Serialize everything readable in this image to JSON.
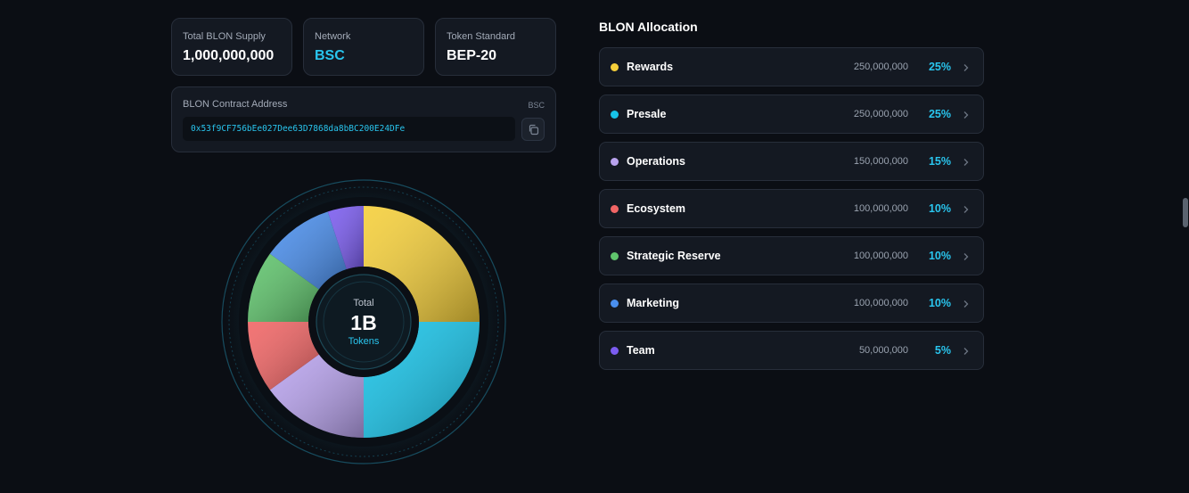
{
  "stats": [
    {
      "label": "Total BLON Supply",
      "value": "1,000,000,000",
      "accent": false
    },
    {
      "label": "Network",
      "value": "BSC",
      "accent": true
    },
    {
      "label": "Token Standard",
      "value": "BEP-20",
      "accent": false
    }
  ],
  "contract": {
    "label": "BLON Contract Address",
    "network": "BSC",
    "address": "0x53f9CF756bEe027Dee63D7868da8bBC200E24DFe",
    "copy_icon": "copy-icon"
  },
  "chart_center": {
    "label": "Total",
    "value": "1B",
    "unit": "Tokens"
  },
  "allocation": {
    "title": "BLON Allocation",
    "items": [
      {
        "name": "Rewards",
        "amount": "250,000,000",
        "pct": "25%",
        "color": "#f5cf3a"
      },
      {
        "name": "Presale",
        "amount": "250,000,000",
        "pct": "25%",
        "color": "#17c3e8"
      },
      {
        "name": "Operations",
        "amount": "150,000,000",
        "pct": "15%",
        "color": "#b9a3ee"
      },
      {
        "name": "Ecosystem",
        "amount": "100,000,000",
        "pct": "10%",
        "color": "#f16565"
      },
      {
        "name": "Strategic Reserve",
        "amount": "100,000,000",
        "pct": "10%",
        "color": "#5fc46c"
      },
      {
        "name": "Marketing",
        "amount": "100,000,000",
        "pct": "10%",
        "color": "#4a8fee"
      },
      {
        "name": "Team",
        "amount": "50,000,000",
        "pct": "5%",
        "color": "#7b5cf0"
      }
    ]
  },
  "chart_data": {
    "type": "pie",
    "categories": [
      "Rewards",
      "Presale",
      "Operations",
      "Ecosystem",
      "Strategic Reserve",
      "Marketing",
      "Team"
    ],
    "values": [
      25,
      25,
      15,
      10,
      10,
      10,
      5
    ],
    "colors": [
      "#f5cf3a",
      "#17c3e8",
      "#b9a3ee",
      "#f16565",
      "#5fc46c",
      "#4a8fee",
      "#7b5cf0"
    ]
  }
}
